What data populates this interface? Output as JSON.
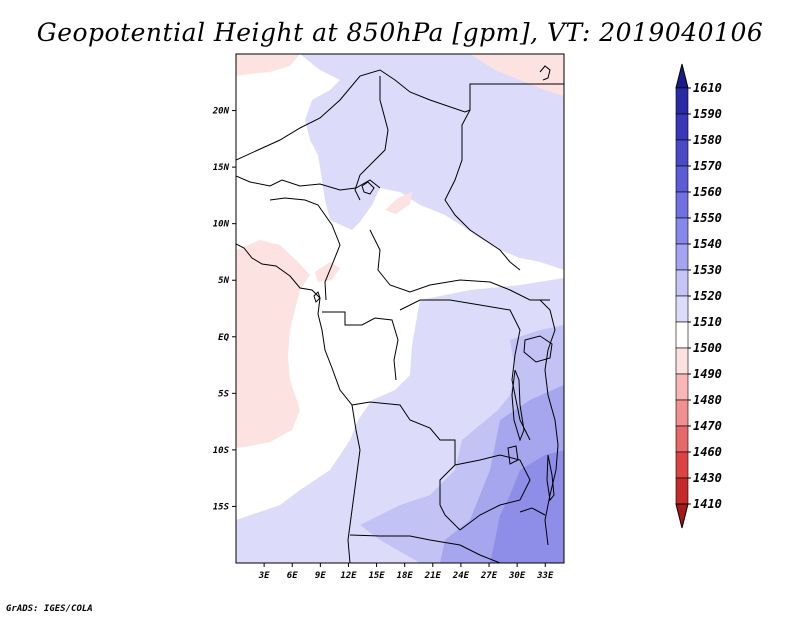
{
  "title": "Geopotential Height at 850hPa [gpm], VT: 2019040106",
  "credit": "GrADS: IGES/COLA",
  "map": {
    "lat_labels": [
      "20N",
      "15N",
      "10N",
      "5N",
      "EQ",
      "5S",
      "10S",
      "15S"
    ],
    "lon_labels": [
      "3E",
      "6E",
      "9E",
      "12E",
      "15E",
      "18E",
      "21E",
      "24E",
      "27E",
      "30E",
      "33E"
    ],
    "lat_values": [
      20,
      15,
      10,
      5,
      0,
      -5,
      -10,
      -15
    ],
    "lon_values": [
      3,
      6,
      9,
      12,
      15,
      18,
      21,
      24,
      27,
      30,
      33
    ],
    "lon_range": [
      0,
      35
    ],
    "lat_range": [
      -20,
      25
    ]
  },
  "colorbar": {
    "labels": [
      "1610",
      "1590",
      "1580",
      "1570",
      "1560",
      "1550",
      "1540",
      "1530",
      "1520",
      "1510",
      "1500",
      "1490",
      "1480",
      "1470",
      "1460",
      "1430",
      "1410"
    ],
    "colors": [
      "#1a1a8a",
      "#2a2aa6",
      "#3838b8",
      "#4a4ac8",
      "#5c5cd6",
      "#7070e0",
      "#8888ea",
      "#a4a4f0",
      "#c4c4f6",
      "#dcdcfa",
      "#ffffff",
      "#fde0e0",
      "#f8b6b6",
      "#f09090",
      "#e66868",
      "#dc4444",
      "#c42a2a",
      "#a81818"
    ]
  },
  "fields": {
    "pink": "#fde2e2",
    "lavender": "#dcdcfa",
    "light_blue": "#c2c2f4",
    "medium_blue": "#a6a6ee",
    "deep_blue": "#8e8ee8"
  }
}
